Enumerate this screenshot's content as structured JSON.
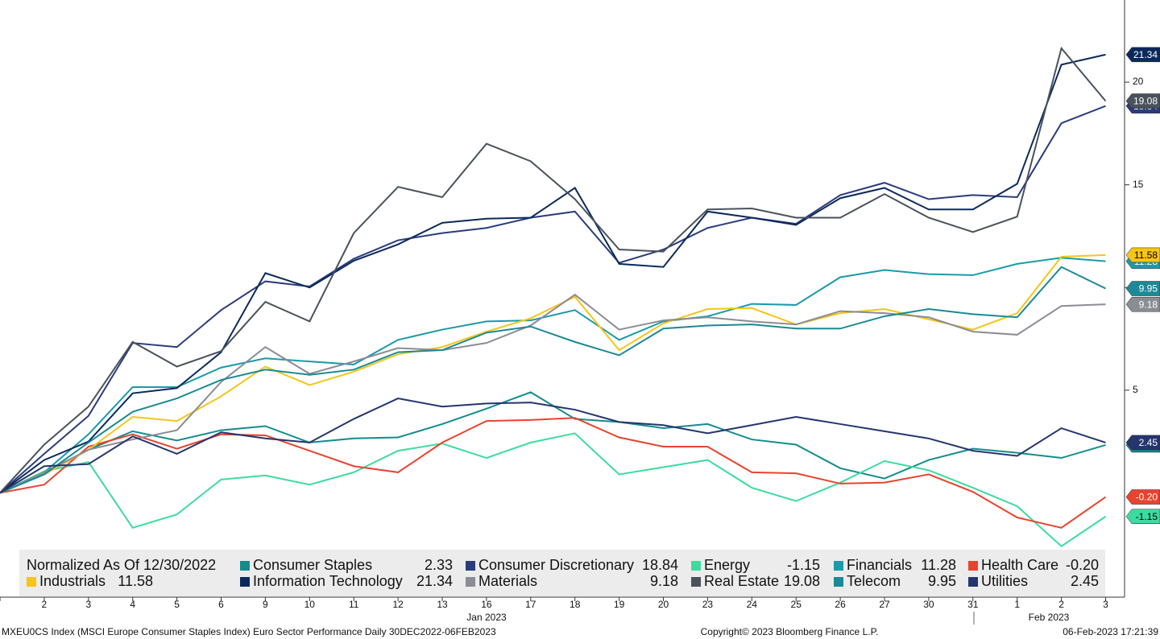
{
  "chart_data": {
    "type": "line",
    "legend_title": "Normalized As Of 12/30/2022",
    "categories": [
      null,
      "2",
      "3",
      "4",
      "5",
      "6",
      "9",
      "10",
      "11",
      "12",
      "13",
      "16",
      "17",
      "18",
      "19",
      "20",
      "23",
      "24",
      "25",
      "26",
      "27",
      "30",
      "31",
      "1",
      "2",
      "3"
    ],
    "month_labels": [
      "Jan 2023",
      "Feb 2023"
    ],
    "ylim": [
      -5,
      24
    ],
    "yticks": [
      5,
      10,
      15,
      20
    ],
    "series": [
      {
        "name": "Consumer Staples",
        "color": "#138c8c",
        "end_label": "2.33",
        "values": [
          0,
          0.9,
          2.1,
          3.0,
          2.55,
          3.05,
          3.25,
          2.45,
          2.65,
          2.7,
          3.35,
          4.1,
          4.9,
          3.6,
          3.45,
          3.15,
          3.35,
          2.6,
          2.35,
          1.2,
          0.7,
          1.6,
          2.15,
          1.95,
          1.7,
          2.33
        ]
      },
      {
        "name": "Consumer Discretionary",
        "color": "#2b3c7c",
        "end_label": "18.84",
        "values": [
          0,
          1.9,
          3.75,
          7.3,
          7.1,
          8.9,
          10.3,
          10.05,
          11.4,
          12.3,
          12.65,
          12.9,
          13.4,
          13.7,
          11.2,
          11.85,
          12.9,
          13.4,
          13.1,
          14.5,
          15.1,
          14.3,
          14.5,
          14.4,
          18.0,
          18.84
        ]
      },
      {
        "name": "Energy",
        "color": "#3ddba0",
        "end_label": "-1.15",
        "values": [
          0,
          1.05,
          1.5,
          -1.7,
          -1.05,
          0.65,
          0.85,
          0.4,
          1.0,
          2.05,
          2.4,
          1.7,
          2.45,
          2.9,
          0.9,
          1.25,
          1.6,
          0.25,
          -0.4,
          0.5,
          1.55,
          1.1,
          0.25,
          -0.65,
          -2.6,
          -1.15
        ]
      },
      {
        "name": "Financials",
        "color": "#1a9aaa",
        "end_label": "11.28",
        "values": [
          0,
          1.0,
          2.85,
          5.15,
          5.15,
          6.1,
          6.55,
          6.4,
          6.25,
          7.45,
          7.95,
          8.35,
          8.4,
          8.9,
          7.45,
          8.35,
          8.6,
          9.2,
          9.15,
          10.5,
          10.85,
          10.65,
          10.6,
          11.15,
          11.45,
          11.28
        ]
      },
      {
        "name": "Health Care",
        "color": "#e8432e",
        "end_label": "-0.20",
        "values": [
          0,
          0.4,
          2.25,
          2.85,
          2.15,
          2.85,
          2.8,
          2.05,
          1.3,
          1.0,
          2.45,
          3.5,
          3.55,
          3.65,
          2.7,
          2.25,
          2.25,
          1.0,
          0.95,
          0.45,
          0.5,
          0.9,
          0.05,
          -1.2,
          -1.7,
          -0.2
        ]
      },
      {
        "name": "Industrials",
        "color": "#f5c518",
        "end_label": "11.58",
        "values": [
          0,
          0.9,
          2.1,
          3.7,
          3.5,
          4.7,
          6.15,
          5.25,
          5.9,
          6.75,
          7.1,
          7.85,
          8.5,
          9.55,
          6.95,
          8.25,
          8.95,
          9.0,
          8.2,
          8.75,
          8.95,
          8.45,
          7.95,
          8.75,
          11.5,
          11.58
        ]
      },
      {
        "name": "Information Technology",
        "color": "#0b2a5b",
        "end_label": "21.34",
        "values": [
          0,
          1.6,
          2.5,
          4.85,
          5.1,
          6.85,
          10.7,
          10.0,
          11.3,
          12.1,
          13.15,
          13.35,
          13.4,
          14.85,
          11.15,
          11.0,
          13.7,
          13.4,
          13.05,
          14.35,
          14.85,
          13.8,
          13.8,
          15.05,
          20.85,
          21.34
        ]
      },
      {
        "name": "Materials",
        "color": "#8a8d93",
        "end_label": "9.18",
        "values": [
          0,
          1.0,
          2.1,
          2.6,
          3.05,
          5.4,
          7.1,
          5.8,
          6.4,
          7.05,
          6.95,
          7.3,
          8.15,
          9.65,
          7.95,
          8.4,
          8.55,
          8.35,
          8.2,
          8.85,
          8.75,
          8.55,
          7.85,
          7.7,
          9.1,
          9.18
        ]
      },
      {
        "name": "Real Estate",
        "color": "#4a525c",
        "end_label": "19.08",
        "values": [
          0,
          2.35,
          4.2,
          7.35,
          6.15,
          6.9,
          9.3,
          8.35,
          12.65,
          14.9,
          14.4,
          17.0,
          16.15,
          14.3,
          11.85,
          11.75,
          13.8,
          13.85,
          13.4,
          13.4,
          14.55,
          13.4,
          12.7,
          13.45,
          21.65,
          19.08
        ]
      },
      {
        "name": "Telecom",
        "color": "#1a8a96",
        "end_label": "9.95",
        "values": [
          0,
          0.9,
          2.45,
          3.95,
          4.6,
          5.5,
          6.0,
          5.75,
          6.0,
          6.85,
          6.95,
          7.8,
          8.1,
          7.35,
          6.7,
          8.0,
          8.15,
          8.2,
          8.0,
          8.0,
          8.6,
          8.95,
          8.7,
          8.55,
          11.0,
          9.95
        ]
      },
      {
        "name": "Utilities",
        "color": "#25356e",
        "end_label": "2.45",
        "values": [
          0,
          1.3,
          1.4,
          2.75,
          1.9,
          2.95,
          2.65,
          2.45,
          3.6,
          4.6,
          4.2,
          4.35,
          4.4,
          4.05,
          3.45,
          3.3,
          2.9,
          3.3,
          3.7,
          3.35,
          3.0,
          2.65,
          2.05,
          1.8,
          3.15,
          2.45
        ]
      }
    ],
    "footer_left": "MXEU0CS Index (MSCI Europe Consumer Staples Index) Euro Sector Performance  Daily 30DEC2022-06FEB2023",
    "footer_center": "Copyright© 2023 Bloomberg Finance L.P.",
    "footer_right": "06-Feb-2023 17:21:39"
  }
}
